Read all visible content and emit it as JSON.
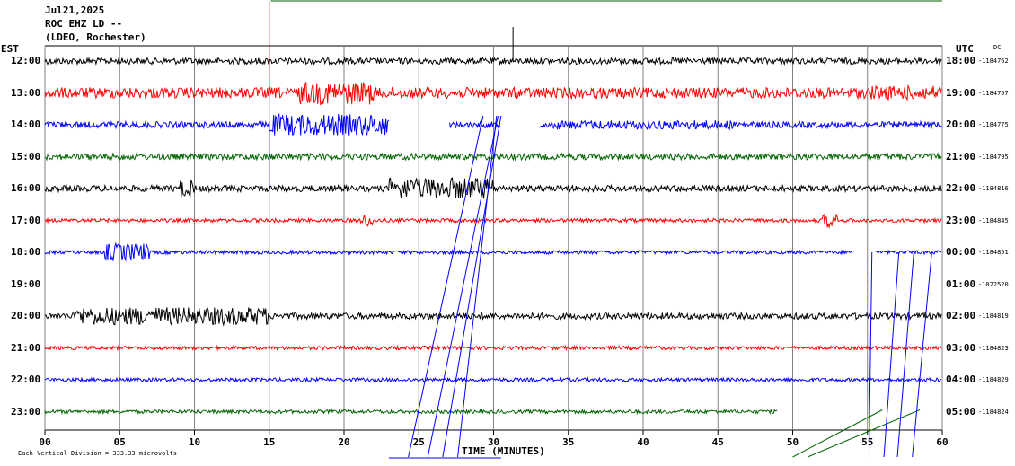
{
  "header": {
    "date": "Jul21,2025",
    "station": "ROC EHZ LD --",
    "network": "(LDEO, Rochester)"
  },
  "left_axis_title": "EST",
  "right_axis_title": "UTC",
  "dc_title": "DC",
  "footer_note": "Each Vertical Division =  333.33 microvolts",
  "colors": {
    "black": "#000000",
    "red": "#ff0000",
    "blue": "#0000ff",
    "green": "#006400",
    "grid": "#808080"
  },
  "chart_data": {
    "type": "line",
    "title": "",
    "xlabel": "TIME (MINUTES)",
    "x_ticks": [
      "00",
      "05",
      "10",
      "15",
      "20",
      "25",
      "30",
      "35",
      "40",
      "45",
      "50",
      "55",
      "60"
    ],
    "xlim": [
      0,
      60
    ],
    "rows": [
      {
        "est": "12:00",
        "utc": "18:00",
        "dc": "-1184762",
        "color": "black",
        "amplitude": "medium"
      },
      {
        "est": "13:00",
        "utc": "19:00",
        "dc": "-1184757",
        "color": "red",
        "amplitude": "high"
      },
      {
        "est": "14:00",
        "utc": "20:00",
        "dc": "-1184775",
        "color": "blue",
        "amplitude": "medium",
        "gaps": [
          [
            23,
            27
          ],
          [
            30.5,
            33
          ]
        ]
      },
      {
        "est": "15:00",
        "utc": "21:00",
        "dc": "-1184795",
        "color": "green",
        "amplitude": "medium"
      },
      {
        "est": "16:00",
        "utc": "22:00",
        "dc": "-1184816",
        "color": "black",
        "amplitude": "medium"
      },
      {
        "est": "17:00",
        "utc": "23:00",
        "dc": "-1184845",
        "color": "red",
        "amplitude": "low"
      },
      {
        "est": "18:00",
        "utc": "00:00",
        "dc": "-1184851",
        "color": "blue",
        "amplitude": "low",
        "gaps": [
          [
            54,
            55.5
          ]
        ]
      },
      {
        "est": "19:00",
        "utc": "01:00",
        "dc": "-1022520",
        "color": "green",
        "amplitude": "none"
      },
      {
        "est": "20:00",
        "utc": "02:00",
        "dc": "-1184819",
        "color": "black",
        "amplitude": "medium"
      },
      {
        "est": "21:00",
        "utc": "03:00",
        "dc": "-1184823",
        "color": "red",
        "amplitude": "low"
      },
      {
        "est": "22:00",
        "utc": "04:00",
        "dc": "-1184829",
        "color": "blue",
        "amplitude": "low"
      },
      {
        "est": "23:00",
        "utc": "05:00",
        "dc": "-1184824",
        "color": "green",
        "amplitude": "low",
        "end_minute": 49
      }
    ]
  }
}
